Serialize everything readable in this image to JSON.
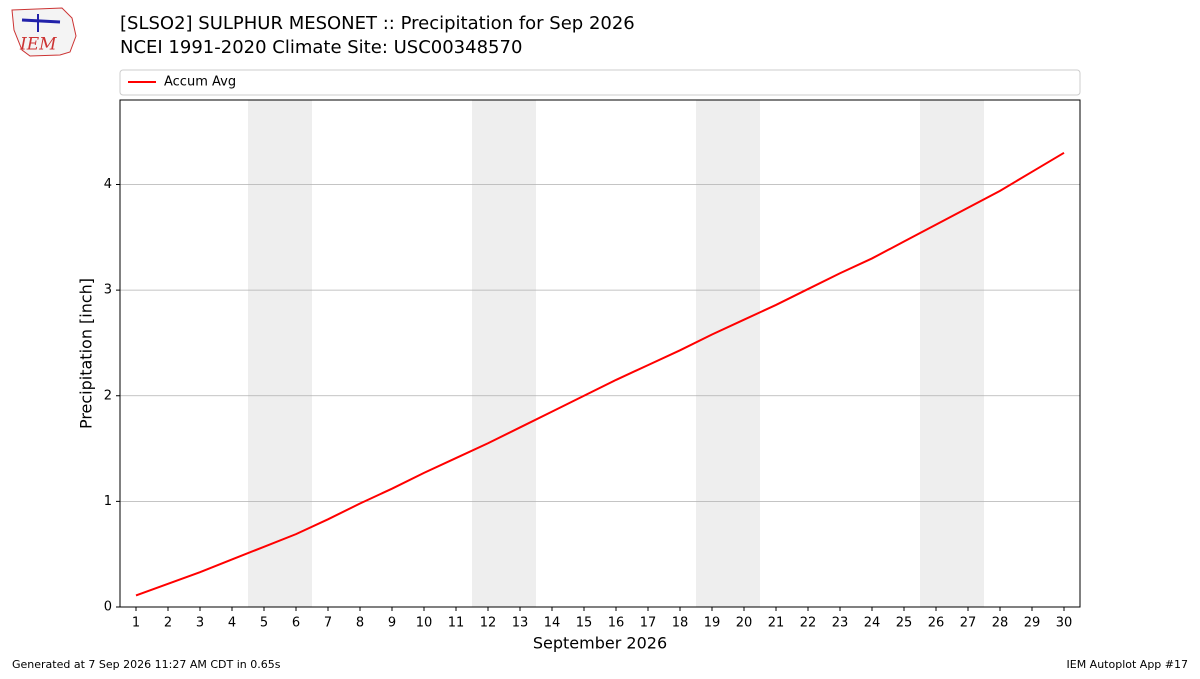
{
  "chart_data": {
    "type": "line",
    "title": "[SLSO2] SULPHUR MESONET :: Precipitation for Sep 2026",
    "subtitle": "NCEI 1991-2020 Climate Site: USC00348570",
    "x_label": "September 2026",
    "y_label": "Precipitation [inch]",
    "x": [
      1,
      2,
      3,
      4,
      5,
      6,
      7,
      8,
      9,
      10,
      11,
      12,
      13,
      14,
      15,
      16,
      17,
      18,
      19,
      20,
      21,
      22,
      23,
      24,
      25,
      26,
      27,
      28,
      29,
      30
    ],
    "series": [
      {
        "name": "Accum Avg",
        "color": "#ff0000",
        "values": [
          0.11,
          0.22,
          0.33,
          0.45,
          0.57,
          0.69,
          0.83,
          0.98,
          1.12,
          1.27,
          1.41,
          1.55,
          1.7,
          1.85,
          2.0,
          2.15,
          2.29,
          2.43,
          2.58,
          2.72,
          2.86,
          3.01,
          3.16,
          3.3,
          3.46,
          3.62,
          3.78,
          3.94,
          4.12,
          4.3
        ]
      }
    ],
    "xlim": [
      0.5,
      30.5
    ],
    "ylim": [
      0,
      4.8
    ],
    "xticks": [
      1,
      2,
      3,
      4,
      5,
      6,
      7,
      8,
      9,
      10,
      11,
      12,
      13,
      14,
      15,
      16,
      17,
      18,
      19,
      20,
      21,
      22,
      23,
      24,
      25,
      26,
      27,
      28,
      29,
      30
    ],
    "yticks": [
      0,
      1,
      2,
      3,
      4
    ],
    "grid": true,
    "legend": "top",
    "shaded_spans": [
      [
        4.5,
        6.5
      ],
      [
        11.5,
        13.5
      ],
      [
        18.5,
        20.5
      ],
      [
        25.5,
        27.5
      ]
    ],
    "shade_color": "#eeeeee"
  },
  "logo_text": "IEM",
  "footer": {
    "left": "Generated at 7 Sep 2026 11:27 AM CDT in 0.65s",
    "right": "IEM Autoplot App #17"
  }
}
